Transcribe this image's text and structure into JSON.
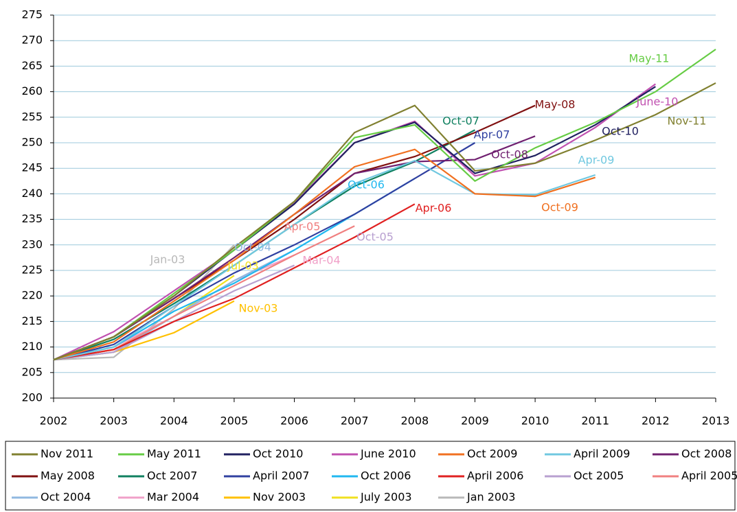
{
  "chart_data": {
    "type": "line",
    "x": [
      2002,
      2003,
      2004,
      2005,
      2006,
      2007,
      2008,
      2009,
      2010,
      2011,
      2012,
      2013
    ],
    "xlim": [
      2002,
      2013
    ],
    "xticks": [
      2002,
      2003,
      2004,
      2005,
      2006,
      2007,
      2008,
      2009,
      2010,
      2011,
      2012,
      2013
    ],
    "ylim": [
      200,
      275
    ],
    "yticks": [
      200,
      205,
      210,
      215,
      220,
      225,
      230,
      235,
      240,
      245,
      250,
      255,
      260,
      265,
      270,
      275
    ],
    "grid": true,
    "legend": "bottom",
    "series": [
      {
        "name": "Nov 2011",
        "label": "Nov-11",
        "color": "#808030",
        "values": [
          207.5,
          212,
          220,
          229.5,
          238.5,
          252,
          257.3,
          244.5,
          246,
          250.5,
          255.5,
          261.7
        ]
      },
      {
        "name": "May 2011",
        "label": "May-11",
        "color": "#66cc44",
        "values": [
          207.5,
          212,
          220.5,
          229,
          238.5,
          251,
          253.5,
          242.5,
          249,
          254,
          260,
          268.3
        ]
      },
      {
        "name": "Oct 2010",
        "label": "Oct-10",
        "color": "#202060",
        "values": [
          207.5,
          212,
          220,
          229,
          238,
          250,
          254,
          244,
          247.5,
          253.5,
          261,
          null
        ]
      },
      {
        "name": "June 2010",
        "label": "June-10",
        "color": "#c050b0",
        "values": [
          207.5,
          213,
          221,
          229,
          238.3,
          250,
          254.2,
          243.5,
          246,
          253,
          261.5,
          null
        ]
      },
      {
        "name": "Oct 2009",
        "label": "Oct-09",
        "color": "#f07020",
        "values": [
          207.5,
          211,
          219,
          227,
          236,
          245.3,
          248.7,
          240,
          239.5,
          243.2,
          null,
          null
        ]
      },
      {
        "name": "April 2009",
        "label": "Apr-09",
        "color": "#70c8e0",
        "values": [
          207.5,
          210,
          218,
          226,
          234,
          242,
          246.5,
          240,
          239.8,
          243.7,
          null,
          null
        ]
      },
      {
        "name": "Oct 2008",
        "label": "Oct-08",
        "color": "#702070",
        "values": [
          207.5,
          212,
          219.5,
          227.5,
          236,
          244,
          246.3,
          246.7,
          251.3,
          null,
          null,
          null
        ]
      },
      {
        "name": "May 2008",
        "label": "May-08",
        "color": "#801010",
        "values": [
          207.5,
          212,
          219.5,
          227,
          235,
          244,
          247.3,
          252,
          257.3,
          null,
          null,
          null
        ]
      },
      {
        "name": "Oct 2007",
        "label": "Oct-07",
        "color": "#108060",
        "values": [
          207.5,
          211.5,
          218.5,
          226,
          234,
          241.5,
          246.3,
          252.5,
          null,
          null,
          null,
          null
        ]
      },
      {
        "name": "April 2007",
        "label": "Apr-07",
        "color": "#3040a0",
        "values": [
          207.5,
          210.5,
          218,
          224.5,
          230,
          236,
          243,
          250,
          null,
          null,
          null,
          null
        ]
      },
      {
        "name": "Oct 2006",
        "label": "Oct-06",
        "color": "#20b8f0",
        "values": [
          207.5,
          210,
          217,
          222.5,
          229,
          236,
          243,
          null,
          null,
          null,
          null,
          null
        ]
      },
      {
        "name": "April 2006",
        "label": "Apr-06",
        "color": "#e02020",
        "values": [
          207.5,
          209.5,
          215,
          219.5,
          225.5,
          231.5,
          238,
          null,
          null,
          null,
          null,
          null
        ]
      },
      {
        "name": "Oct 2005",
        "label": "Oct-05",
        "color": "#b8a0d0",
        "values": [
          207.5,
          209,
          215,
          221,
          226,
          null,
          null,
          null,
          null,
          null,
          null,
          null
        ]
      },
      {
        "name": "April 2005",
        "label": "Apr-05",
        "color": "#f08080",
        "values": [
          207.5,
          209.5,
          216,
          222,
          228,
          233.7,
          null,
          null,
          null,
          null,
          null,
          null
        ]
      },
      {
        "name": "Oct 2004",
        "label": "Oct-04",
        "color": "#90b8e0",
        "values": [
          207.5,
          209,
          216,
          223,
          229,
          null,
          null,
          null,
          null,
          null,
          null,
          null
        ]
      },
      {
        "name": "Mar 2004",
        "label": "Mar-04",
        "color": "#f0a0c8",
        "values": [
          207.5,
          210,
          216,
          223,
          228,
          null,
          null,
          null,
          null,
          null,
          null,
          null
        ]
      },
      {
        "name": "Nov 2003",
        "label": "Nov-03",
        "color": "#ffc000",
        "values": [
          207.5,
          209,
          212.8,
          219,
          null,
          null,
          null,
          null,
          null,
          null,
          null,
          null
        ]
      },
      {
        "name": "July 2003",
        "label": "Jul-03",
        "color": "#f0e020",
        "values": [
          207.5,
          209.5,
          216,
          224,
          null,
          null,
          null,
          null,
          null,
          null,
          null,
          null
        ]
      },
      {
        "name": "Jan 2003",
        "label": "Jan-03",
        "color": "#b8b8b8",
        "values": [
          207.5,
          208,
          217.5,
          230,
          null,
          null,
          null,
          null,
          null,
          null,
          null,
          null
        ]
      }
    ]
  }
}
